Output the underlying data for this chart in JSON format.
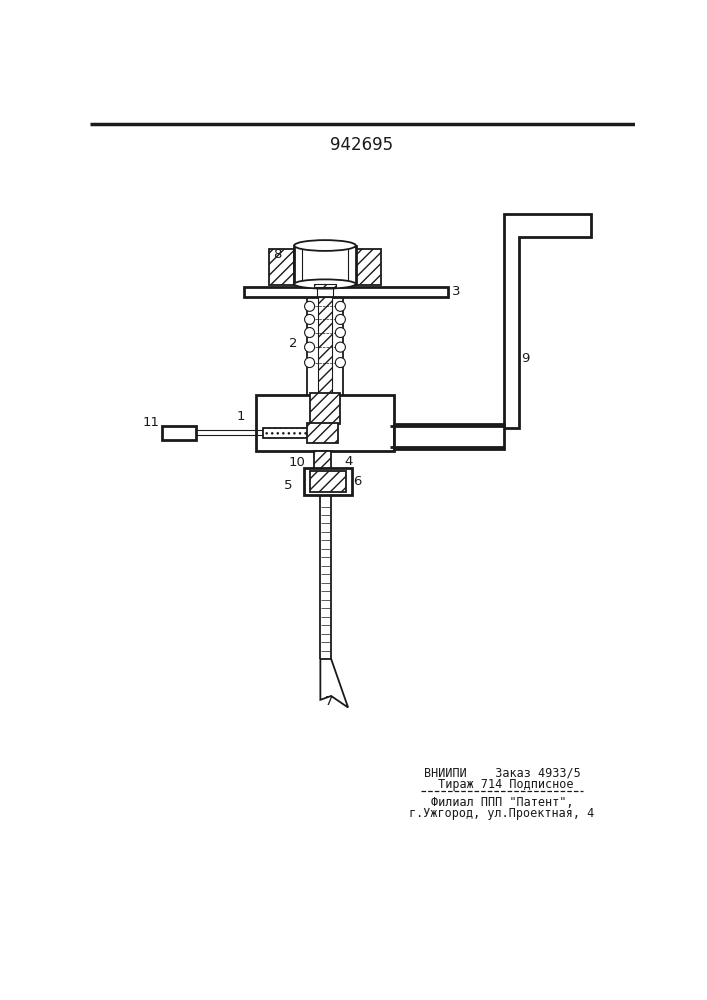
{
  "title": "942695",
  "bg_color": "#ffffff",
  "line_color": "#1a1a1a",
  "footer_line1": "ВНИИПИ    Заказ 4933/5",
  "footer_line2": " Тираж 714 Подписное",
  "footer_line3": "Филиал ППП \"Патент\",",
  "footer_line4": "г.Ужгород, ул.Проектная, 4",
  "fig_width": 7.07,
  "fig_height": 10.0
}
